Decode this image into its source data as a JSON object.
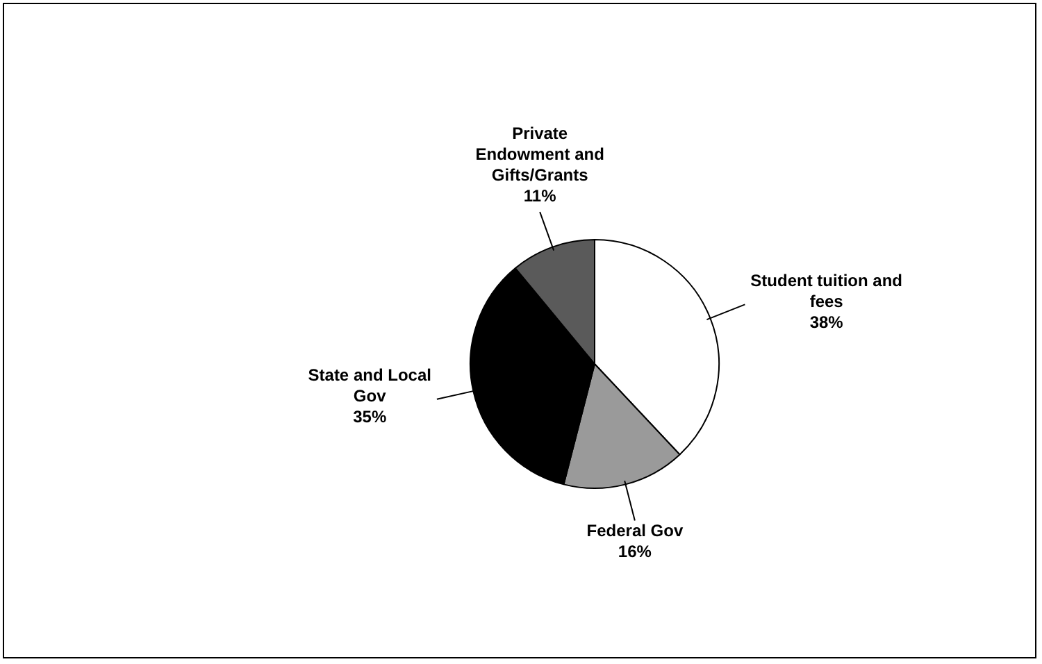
{
  "chart_data": {
    "type": "pie",
    "categories": [
      "Student tuition and fees",
      "Federal Gov",
      "State  and Local Gov",
      "Private Endowment and Gifts/Grants"
    ],
    "values": [
      38,
      16,
      35,
      11
    ],
    "value_labels": [
      "38%",
      "16%",
      "35%",
      "11%"
    ],
    "colors": [
      "#ffffff",
      "#9a9a9a",
      "#000000",
      "#5a5a5a"
    ],
    "legend": false
  }
}
